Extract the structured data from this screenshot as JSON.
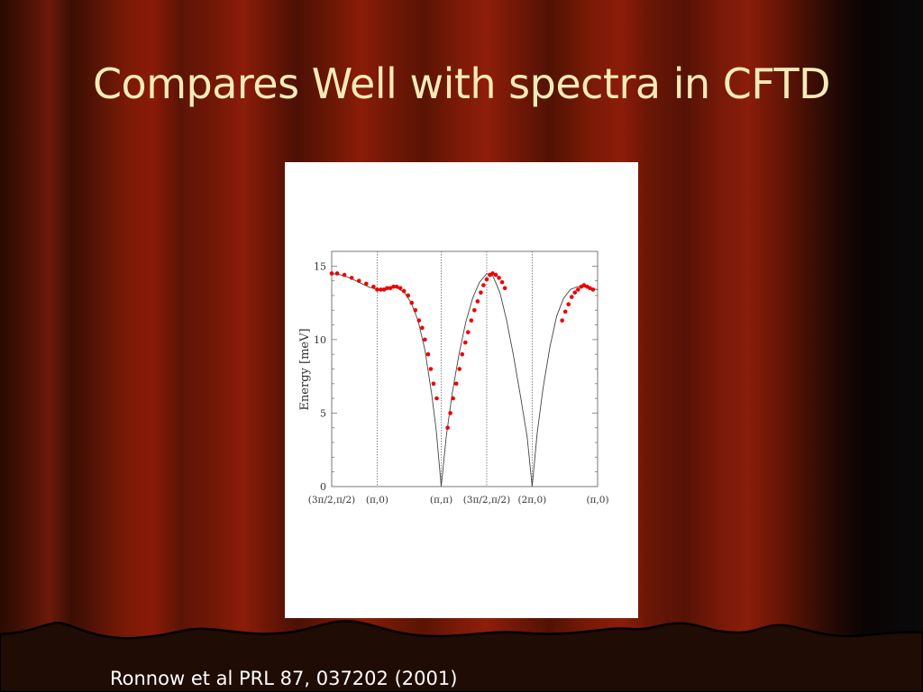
{
  "slide": {
    "title": "Compares Well with spectra in CFTD",
    "citation": "Ronnow et al PRL 87, 037202 (2001)"
  },
  "colors": {
    "points": "#ee0000",
    "curve": "#444444",
    "title": "#f6eab8"
  },
  "chart_data": {
    "type": "scatter",
    "title": "",
    "ylabel": "Energy [meV]",
    "xlabel": "",
    "ylim": [
      0,
      16
    ],
    "xlim": [
      0,
      5.85
    ],
    "yticks": [
      0,
      5,
      10,
      15
    ],
    "grid": false,
    "x_ticks": [
      {
        "label": "(3π/2,π/2)",
        "x": 0
      },
      {
        "label": "(π,0)",
        "x": 1
      },
      {
        "label": "(π,π)",
        "x": 2.41
      },
      {
        "label": "(3π/2,π/2)",
        "x": 3.41
      },
      {
        "label": "(2π,0)",
        "x": 4.41
      },
      {
        "label": "(π,0)",
        "x": 5.85
      }
    ],
    "series": [
      {
        "style": "points",
        "x": [
          0.0,
          0.12,
          0.28,
          0.44,
          0.6,
          0.76,
          0.92,
          1.0,
          1.08,
          1.15,
          1.22,
          1.29,
          1.36,
          1.43,
          1.51,
          1.59,
          1.68,
          1.76,
          1.84,
          1.92,
          1.99,
          2.05,
          2.12,
          2.18,
          2.24,
          2.31,
          2.55,
          2.61,
          2.67,
          2.74,
          2.81,
          2.87,
          2.94,
          3.0,
          3.07,
          3.14,
          3.21,
          3.28,
          3.34,
          3.41,
          3.48,
          3.54,
          3.61,
          3.68,
          3.75,
          3.81,
          5.07,
          5.14,
          5.21,
          5.28,
          5.35,
          5.42,
          5.49,
          5.55,
          5.62,
          5.68,
          5.75
        ],
        "y": [
          14.5,
          14.5,
          14.4,
          14.2,
          14.0,
          13.8,
          13.6,
          13.4,
          13.4,
          13.4,
          13.5,
          13.5,
          13.6,
          13.6,
          13.5,
          13.3,
          13.0,
          12.5,
          12.0,
          11.3,
          10.8,
          10.0,
          9.0,
          8.0,
          7.0,
          6.0,
          4.0,
          5.0,
          6.0,
          7.0,
          8.0,
          9.0,
          9.8,
          10.5,
          11.3,
          12.0,
          12.6,
          13.2,
          13.7,
          14.1,
          14.4,
          14.5,
          14.4,
          14.2,
          13.9,
          13.5,
          11.3,
          11.9,
          12.4,
          12.9,
          13.2,
          13.4,
          13.6,
          13.7,
          13.6,
          13.5,
          13.4
        ]
      },
      {
        "style": "line",
        "x": [
          0.0,
          0.2,
          0.4,
          0.6,
          0.8,
          1.0,
          1.2,
          1.4,
          1.6,
          1.75,
          1.9,
          2.05,
          2.2,
          2.3,
          2.41,
          2.52,
          2.65,
          2.8,
          2.95,
          3.1,
          3.25,
          3.41,
          3.55,
          3.7,
          3.85,
          4.0,
          4.15,
          4.3,
          4.41,
          4.52,
          4.65,
          4.8,
          4.95,
          5.1,
          5.25,
          5.4,
          5.55,
          5.7,
          5.85
        ],
        "y": [
          14.5,
          14.4,
          14.2,
          13.9,
          13.6,
          13.4,
          13.5,
          13.6,
          13.2,
          12.5,
          11.3,
          9.3,
          6.3,
          3.8,
          0.0,
          3.4,
          6.3,
          9.0,
          11.2,
          12.8,
          13.9,
          14.5,
          14.3,
          13.2,
          11.3,
          8.9,
          6.2,
          3.4,
          0.0,
          3.6,
          6.7,
          9.5,
          11.6,
          12.8,
          13.4,
          13.6,
          13.6,
          13.5,
          13.4
        ]
      }
    ]
  }
}
